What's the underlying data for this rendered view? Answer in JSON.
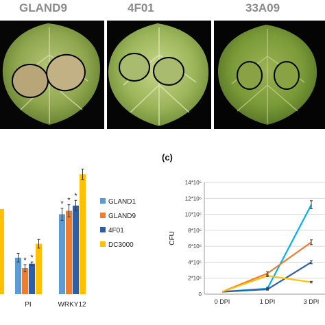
{
  "photos": {
    "titles": [
      "GLAND9",
      "4F01",
      "33A09"
    ]
  },
  "panel_c_label": "(c)",
  "chart_data": [
    {
      "type": "bar",
      "title": "",
      "xlabel": "",
      "ylabel": "",
      "categories": [
        "PI",
        "WRKY12"
      ],
      "series": [
        {
          "name": "GLAND1",
          "color": "#5b9bd5",
          "values": [
            2.1,
            4.6
          ]
        },
        {
          "name": "GLAND9",
          "color": "#ed7d31",
          "values": [
            1.5,
            4.8
          ]
        },
        {
          "name": "4F01",
          "color": "#2e5ea8",
          "values": [
            1.75,
            5.1
          ]
        },
        {
          "name": "DC3000",
          "color": "#ffc000",
          "values": [
            2.9,
            6.9
          ]
        }
      ],
      "errors": [
        [
          0.25,
          0.35
        ],
        [
          0.2,
          0.35
        ],
        [
          0.1,
          0.3
        ],
        [
          0.25,
          0.3
        ]
      ],
      "significance": [
        "",
        "*",
        "*",
        ""
      ],
      "significance_wrky12": [
        "*",
        "*",
        "*",
        ""
      ],
      "partial_left_bar": {
        "color": "#ffc000",
        "value": 4.9
      },
      "legend_position": "right"
    },
    {
      "type": "line",
      "title": "",
      "xlabel": "",
      "ylabel": "CFU",
      "ytick_labels": [
        "0",
        "2*10⁶",
        "4*10⁶",
        "6*10⁶",
        "8*10⁶",
        "10*10⁶",
        "12*10⁶",
        "14*10⁶"
      ],
      "x": [
        "0 DPI",
        "1 DPI",
        "3 DPI"
      ],
      "ylim": [
        0,
        14
      ],
      "y_unit": "10^6 CFU",
      "series": [
        {
          "color": "#00b0f0",
          "values": [
            0.3,
            0.7,
            11.2
          ]
        },
        {
          "color": "#ed7d31",
          "values": [
            0.3,
            2.6,
            6.5
          ]
        },
        {
          "color": "#2e5ea8",
          "values": [
            0.3,
            0.6,
            4.0
          ]
        },
        {
          "color": "#ffc000",
          "values": [
            0.3,
            2.3,
            1.5
          ]
        }
      ],
      "errors": [
        [
          0,
          0.15,
          0.5
        ],
        [
          0,
          0.2,
          0.3
        ],
        [
          0,
          0.1,
          0.2
        ],
        [
          0,
          0.1,
          0.1
        ]
      ],
      "grid": "horizontal"
    }
  ]
}
